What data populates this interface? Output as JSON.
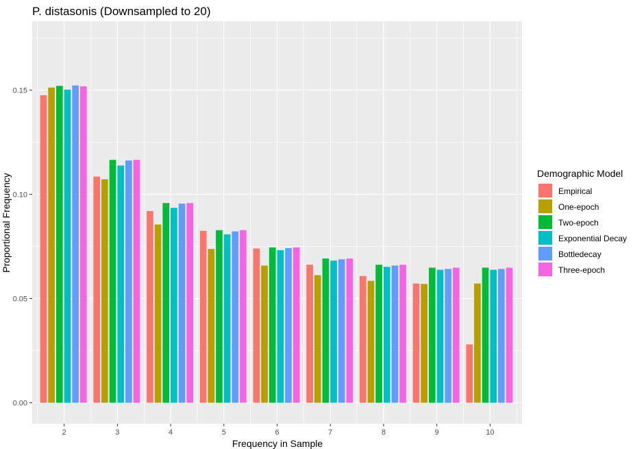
{
  "chart_data": {
    "type": "bar",
    "title": "P. distasonis (Downsampled to 20)",
    "xlabel": "Frequency in Sample",
    "ylabel": "Proportional Frequency",
    "categories": [
      "2",
      "3",
      "4",
      "5",
      "6",
      "7",
      "8",
      "9",
      "10"
    ],
    "y_ticks": [
      "0.00",
      "0.05",
      "0.10",
      "0.15"
    ],
    "ylim": [
      -0.01,
      0.183
    ],
    "grid": true,
    "legend": {
      "title": "Demographic Model",
      "position": "right"
    },
    "series": [
      {
        "name": "Empirical",
        "color": "#F8766D",
        "values": [
          0.1475,
          0.1085,
          0.092,
          0.0825,
          0.074,
          0.0662,
          0.0608,
          0.0572,
          0.028
        ]
      },
      {
        "name": "One-epoch",
        "color": "#B79F00",
        "values": [
          0.1512,
          0.1072,
          0.0855,
          0.0738,
          0.0658,
          0.0612,
          0.0585,
          0.057,
          0.0572
        ]
      },
      {
        "name": "Two-epoch",
        "color": "#00BA38",
        "values": [
          0.152,
          0.1165,
          0.0958,
          0.0828,
          0.0745,
          0.0692,
          0.0662,
          0.0648,
          0.0648
        ]
      },
      {
        "name": "Exponential Decay",
        "color": "#00BFC4",
        "values": [
          0.1502,
          0.1138,
          0.0935,
          0.0808,
          0.0732,
          0.0682,
          0.0652,
          0.0638,
          0.0638
        ]
      },
      {
        "name": "Bottledecay",
        "color": "#619CFF",
        "values": [
          0.1522,
          0.1162,
          0.0955,
          0.0822,
          0.0742,
          0.0688,
          0.0658,
          0.0642,
          0.0642
        ]
      },
      {
        "name": "Three-epoch",
        "color": "#F564E3",
        "values": [
          0.1518,
          0.1165,
          0.0958,
          0.0828,
          0.0745,
          0.0692,
          0.0662,
          0.0648,
          0.0648
        ]
      }
    ]
  }
}
